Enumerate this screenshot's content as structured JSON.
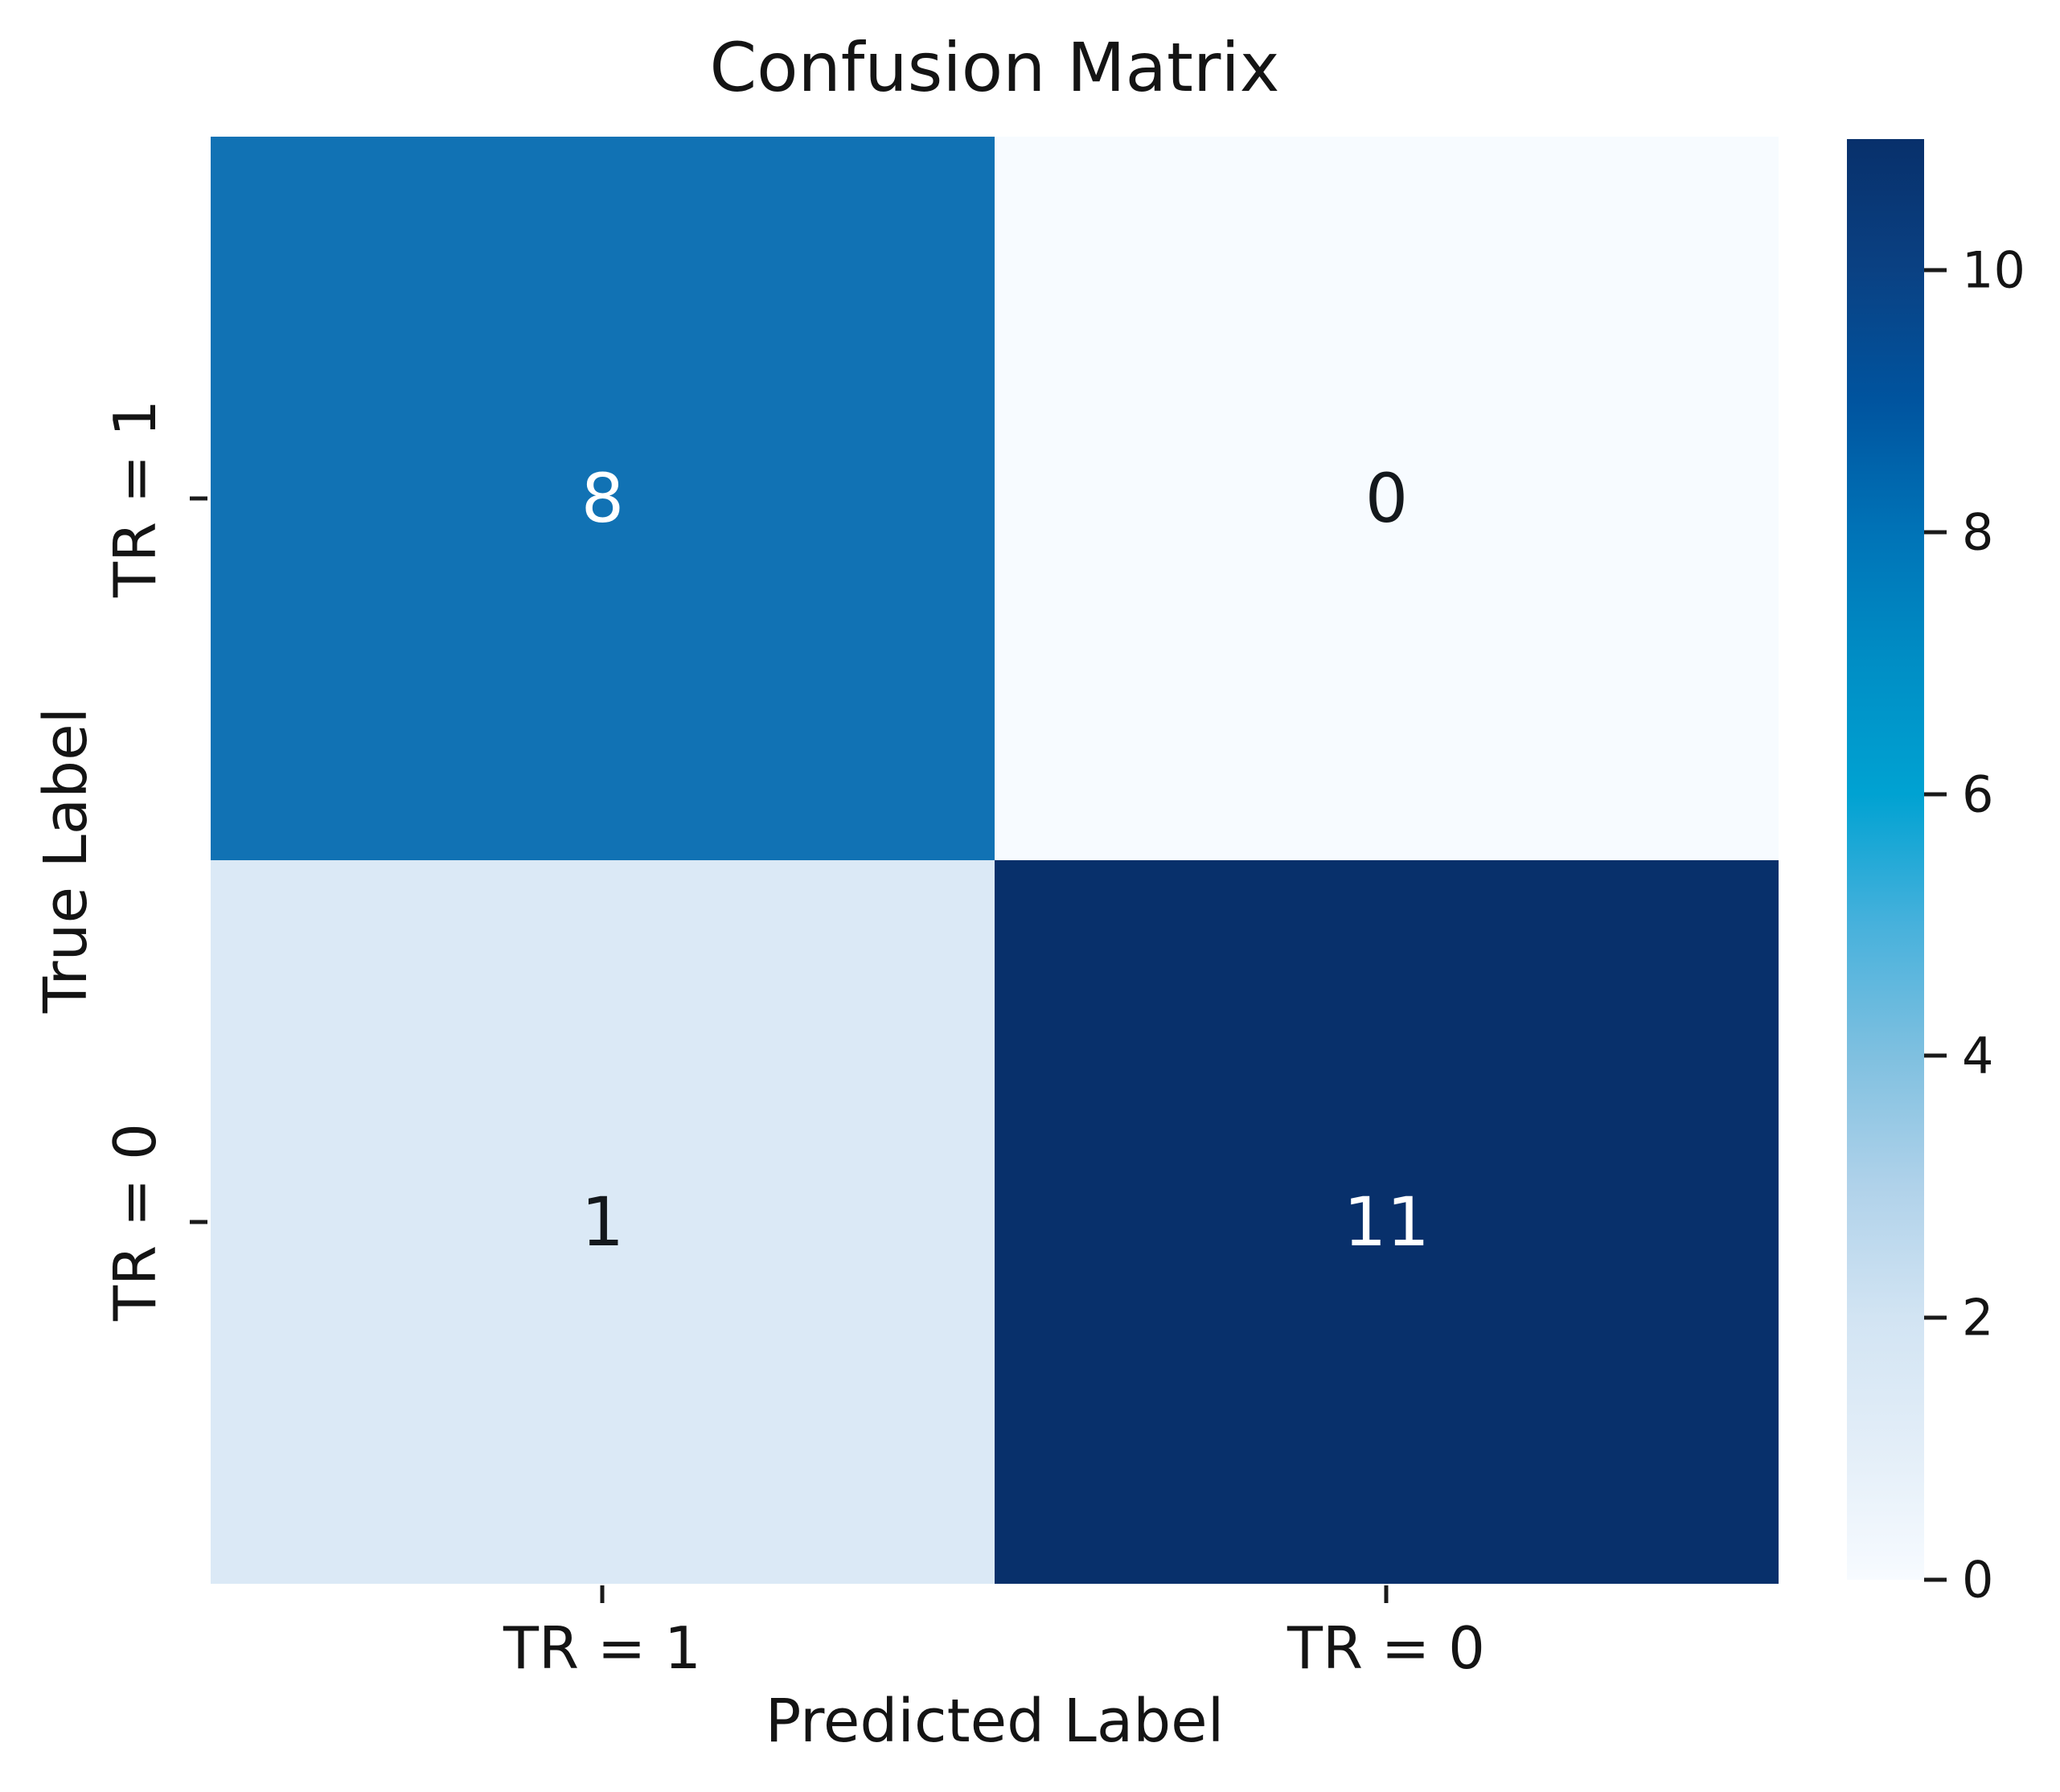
{
  "chart_data": {
    "type": "heatmap",
    "title": "Confusion Matrix",
    "xlabel": "Predicted Label",
    "ylabel": "True Label",
    "x_tick_labels": [
      "TR = 1",
      "TR = 0"
    ],
    "y_tick_labels": [
      "TR = 1",
      "TR = 0"
    ],
    "matrix": [
      [
        8,
        0
      ],
      [
        1,
        11
      ]
    ],
    "vmin": 0,
    "vmax": 11,
    "grid": false,
    "legend_position": "right-colorbar",
    "cell_colors": [
      [
        "#1172b4",
        "#f7fbff"
      ],
      [
        "#dbe9f6",
        "#08306b"
      ]
    ],
    "cell_text_colors": [
      [
        "#ffffff",
        "#14181c"
      ],
      [
        "#14181c",
        "#ffffff"
      ]
    ],
    "colorbar": {
      "ticks": [
        0,
        2,
        4,
        6,
        8,
        10
      ],
      "gradient_stops": [
        {
          "value": 0,
          "color": "#f7fbff"
        },
        {
          "value": 1,
          "color": "#e3eef8"
        },
        {
          "value": 2,
          "color": "#d2e4f3"
        },
        {
          "value": 3,
          "color": "#b0d2ea"
        },
        {
          "value": 4,
          "color": "#7fc0e0"
        },
        {
          "value": 5,
          "color": "#47b1dc"
        },
        {
          "value": 6,
          "color": "#00a2d2"
        },
        {
          "value": 7,
          "color": "#008ec5"
        },
        {
          "value": 8,
          "color": "#0073b7"
        },
        {
          "value": 9,
          "color": "#00549f"
        },
        {
          "value": 10,
          "color": "#0a4183"
        },
        {
          "value": 11,
          "color": "#08306b"
        }
      ]
    }
  }
}
